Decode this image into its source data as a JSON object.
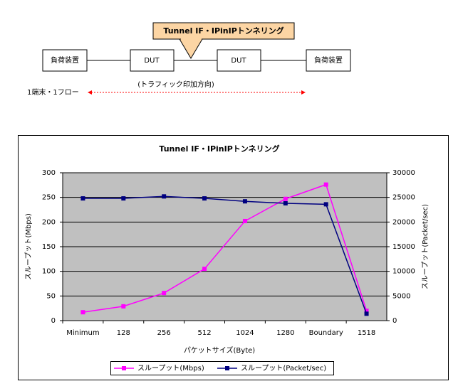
{
  "diagram": {
    "banner": "Tunnel IF・IPinIPトンネリング",
    "nodes": [
      {
        "label": "負荷装置"
      },
      {
        "label": "DUT"
      },
      {
        "label": "DUT"
      },
      {
        "label": "負荷装置"
      }
    ],
    "direction_label": "(トラフィック印加方向)",
    "flow_label": "1端末・1フロー"
  },
  "chart_data": {
    "type": "line",
    "title": "Tunnel IF・IPinIPトンネリング",
    "x_label": "パケットサイズ(Byte)",
    "y_label": "スループット(Mbps)",
    "y2_label": "スループット(Packet/sec)",
    "categories": [
      "Minimum",
      "128",
      "256",
      "512",
      "1024",
      "1280",
      "Boundary",
      "1518"
    ],
    "series": [
      {
        "name": "スループット(Mbps)",
        "color": "#ff00ff",
        "values": [
          17,
          29,
          56,
          105,
          202,
          247,
          276,
          20
        ]
      },
      {
        "name": "スループット(Packet/sec)",
        "color": "#000080",
        "axis": "y2",
        "values": [
          24800,
          24800,
          25200,
          24800,
          24200,
          23800,
          23600,
          1400
        ]
      }
    ],
    "ylim": [
      0,
      300
    ],
    "yticks": [
      0,
      50,
      100,
      150,
      200,
      250,
      300
    ],
    "y2lim": [
      0,
      30000
    ],
    "y2ticks": [
      0,
      5000,
      10000,
      15000,
      20000,
      25000,
      30000
    ],
    "grid": true
  }
}
